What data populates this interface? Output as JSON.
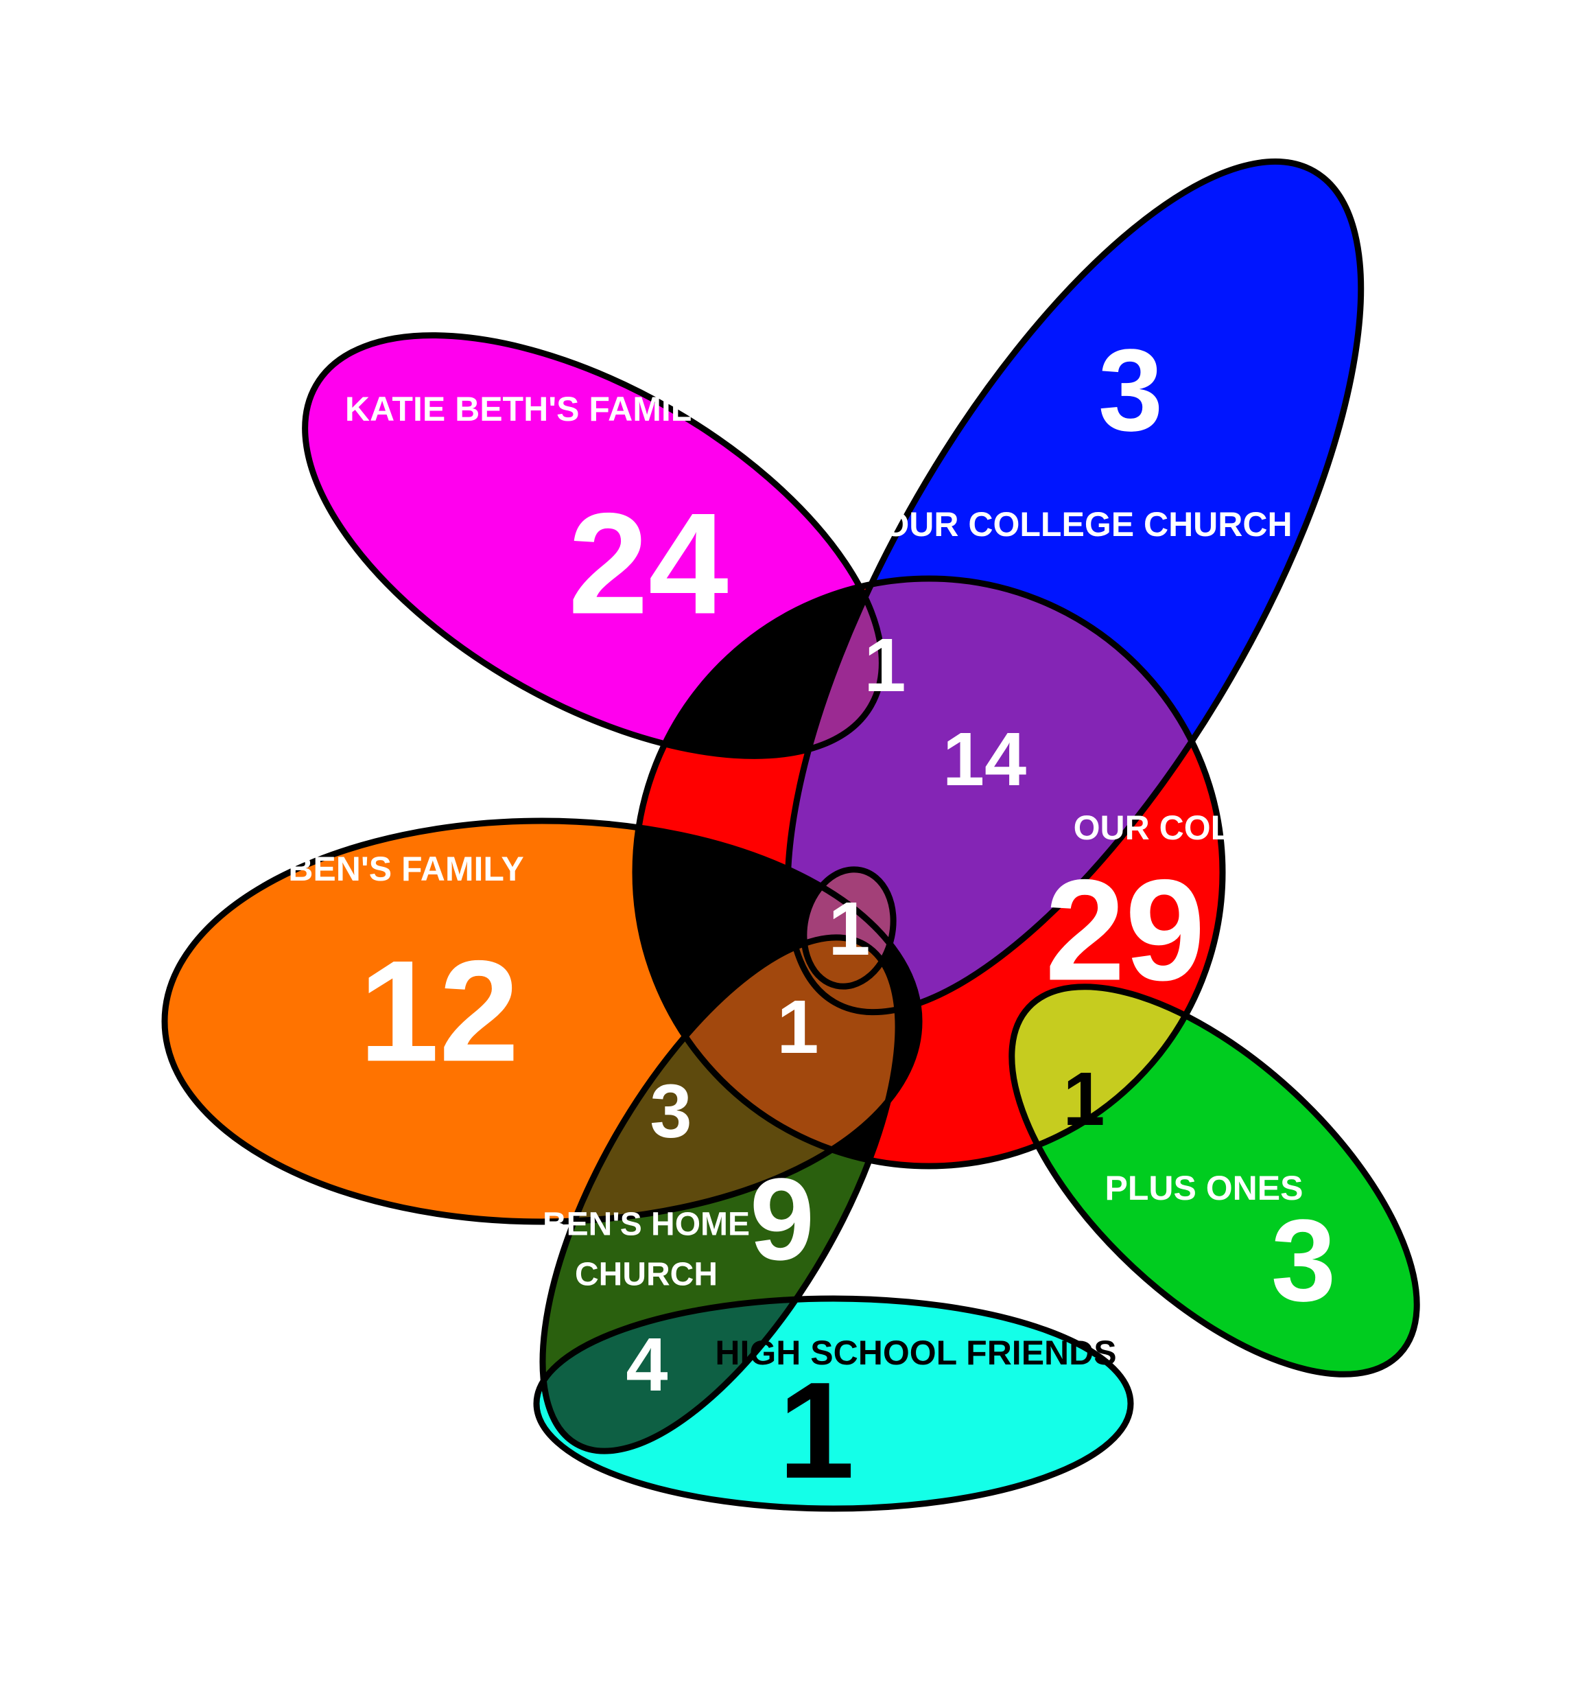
{
  "sets": {
    "katie_family": {
      "label": "KATIE BETH'S FAMILY",
      "count": "24",
      "color": "#ff00ee"
    },
    "college_church": {
      "label": "OUR COLLEGE CHURCH",
      "count": "3",
      "color": "#0015ff"
    },
    "our_college": {
      "label": "OUR COLLEGE",
      "count": "29",
      "color": "#ff0000"
    },
    "bens_family": {
      "label": "BEN'S FAMILY",
      "count": "12",
      "color": "#ff7300"
    },
    "home_church": {
      "label_line1": "BEN'S HOME",
      "label_line2": "CHURCH",
      "count": "9",
      "color": "#2a600e"
    },
    "high_school": {
      "label": "HIGH SCHOOL FRIENDS",
      "count": "1",
      "color": "#14ffe8"
    },
    "plus_ones": {
      "label": "PLUS ONES",
      "count": "3",
      "color": "#00cc1f"
    }
  },
  "intersections": {
    "katie_church_college": "1",
    "church_college": "14",
    "family_church_college_home": "1",
    "family_college_home": "1",
    "family_home": "3",
    "home_highschool": "4",
    "college_plusones": "1"
  },
  "colors": {
    "church_college_overlap": "#8425b5",
    "katie_church_college_overlap": "#9b2a92",
    "family_home_overlap": "#5e4a0d",
    "family_college_home_overlap": "#a2480d",
    "family_church_college_home_overlap": "#a34078",
    "home_highschool_overlap": "#0e6044",
    "college_plusones_overlap": "#c6cc1f"
  }
}
